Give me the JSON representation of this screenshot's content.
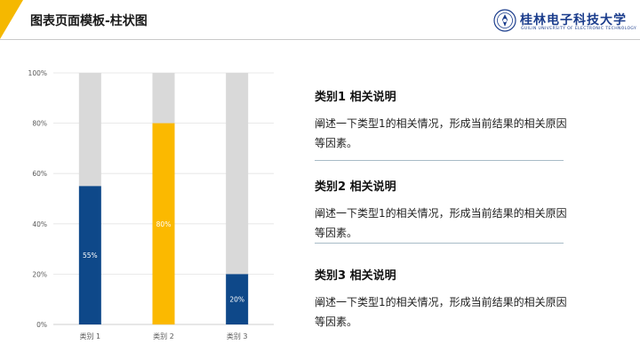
{
  "header": {
    "title": "图表页面模板-柱状图",
    "accent_color": "#f5b800"
  },
  "logo": {
    "name_cn": "桂林电子科技大学",
    "name_en": "GUILIN UNIVERSITY OF ELECTRONIC TECHNOLOGY",
    "color": "#1a3c8c"
  },
  "chart_data": {
    "type": "bar",
    "stacked": true,
    "categories": [
      "类别 1",
      "类别 2",
      "类别 3"
    ],
    "values": [
      55,
      80,
      20
    ],
    "value_labels": [
      "55%",
      "80%",
      "20%"
    ],
    "bar_colors": [
      "#0e4889",
      "#fbb900",
      "#0e4889"
    ],
    "remainder_color": "#d9d9d9",
    "ylim": [
      0,
      100
    ],
    "yticks": [
      "0%",
      "20%",
      "40%",
      "60%",
      "80%",
      "100%"
    ],
    "grid": true
  },
  "descriptions": [
    {
      "heading": "类别1 相关说明",
      "body": "阐述一下类型1的相关情况，形成当前结果的相关原因等因素。"
    },
    {
      "heading": "类别2 相关说明",
      "body": "阐述一下类型1的相关情况，形成当前结果的相关原因等因素。"
    },
    {
      "heading": "类别3 相关说明",
      "body": "阐述一下类型1的相关情况，形成当前结果的相关原因等因素。"
    }
  ]
}
